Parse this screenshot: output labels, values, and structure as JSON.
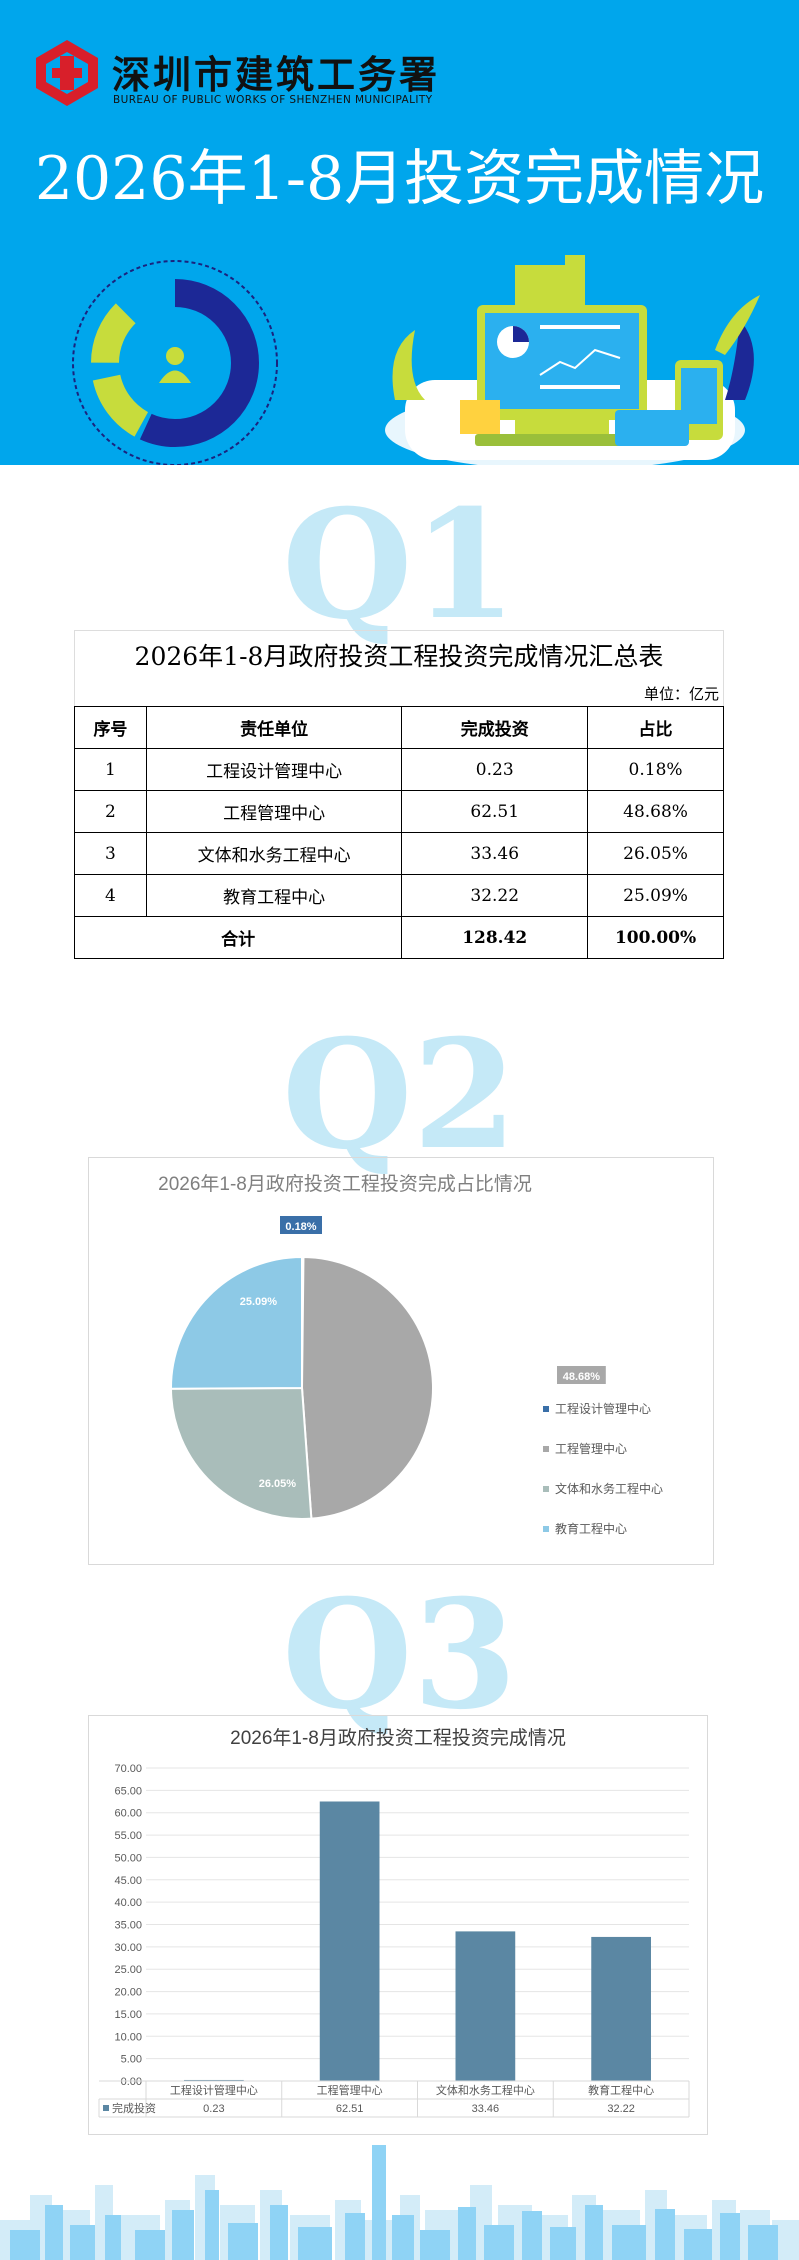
{
  "header": {
    "org_name": "深圳市建筑工务署",
    "org_name_en": "BUREAU OF PUBLIC WORKS OF SHENZHEN MUNICIPALITY",
    "title": "2026年1-8月投资完成情况"
  },
  "sections": {
    "q1": "Q1",
    "q2": "Q2",
    "q3": "Q3"
  },
  "table": {
    "title": "2026年1-8月政府投资工程投资完成情况汇总表",
    "unit": "单位：亿元",
    "headers": [
      "序号",
      "责任单位",
      "完成投资",
      "占比"
    ],
    "rows": [
      {
        "no": "1",
        "unit": "工程设计管理中心",
        "amount": "0.23",
        "share": "0.18%"
      },
      {
        "no": "2",
        "unit": "工程管理中心",
        "amount": "62.51",
        "share": "48.68%"
      },
      {
        "no": "3",
        "unit": "文体和水务工程中心",
        "amount": "33.46",
        "share": "26.05%"
      },
      {
        "no": "4",
        "unit": "教育工程中心",
        "amount": "32.22",
        "share": "25.09%"
      }
    ],
    "total": {
      "label": "合计",
      "amount": "128.42",
      "share": "100.00%"
    }
  },
  "colors": {
    "header_bg": "#00a6ec",
    "q_label": "#c5e9f7",
    "bar": "#5b87a3"
  },
  "chart_data": [
    {
      "type": "pie",
      "title": "2026年1-8月政府投资工程投资完成占比情况",
      "categories": [
        "工程设计管理中心",
        "工程管理中心",
        "文体和水务工程中心",
        "教育工程中心"
      ],
      "values": [
        0.18,
        48.68,
        26.05,
        25.09
      ],
      "labels": [
        "0.18%",
        "48.68%",
        "26.05%",
        "25.09%"
      ],
      "colors": [
        "#3a6fa8",
        "#a8a8a8",
        "#a9bdba",
        "#8dc9e6"
      ],
      "legend": "right"
    },
    {
      "type": "bar",
      "title": "2026年1-8月政府投资工程投资完成情况",
      "categories": [
        "工程设计管理中心",
        "工程管理中心",
        "文体和水务工程中心",
        "教育工程中心"
      ],
      "series": [
        {
          "name": "完成投资",
          "values": [
            0.23,
            62.51,
            33.46,
            32.22
          ]
        }
      ],
      "value_labels": [
        "0.23",
        "62.51",
        "33.46",
        "32.22"
      ],
      "ylim": [
        0,
        70
      ],
      "yticks": [
        "0.00",
        "5.00",
        "10.00",
        "15.00",
        "20.00",
        "25.00",
        "30.00",
        "35.00",
        "40.00",
        "45.00",
        "50.00",
        "55.00",
        "60.00",
        "65.00",
        "70.00"
      ],
      "grid": true,
      "data_table": true
    }
  ]
}
